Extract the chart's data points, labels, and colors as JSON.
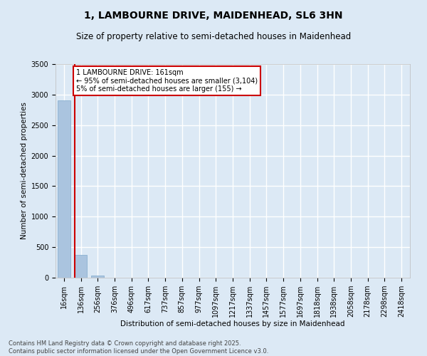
{
  "title": "1, LAMBOURNE DRIVE, MAIDENHEAD, SL6 3HN",
  "subtitle": "Size of property relative to semi-detached houses in Maidenhead",
  "xlabel": "Distribution of semi-detached houses by size in Maidenhead",
  "ylabel": "Number of semi-detached properties",
  "categories": [
    "16sqm",
    "136sqm",
    "256sqm",
    "376sqm",
    "496sqm",
    "617sqm",
    "737sqm",
    "857sqm",
    "977sqm",
    "1097sqm",
    "1217sqm",
    "1337sqm",
    "1457sqm",
    "1577sqm",
    "1697sqm",
    "1818sqm",
    "1938sqm",
    "2058sqm",
    "2178sqm",
    "2298sqm",
    "2418sqm"
  ],
  "values": [
    2900,
    370,
    30,
    0,
    0,
    0,
    0,
    0,
    0,
    0,
    0,
    0,
    0,
    0,
    0,
    0,
    0,
    0,
    0,
    0,
    0
  ],
  "bar_color": "#aac4df",
  "bar_edge_color": "#8ab0d0",
  "vline_color": "#cc0000",
  "annotation_text": "1 LAMBOURNE DRIVE: 161sqm\n← 95% of semi-detached houses are smaller (3,104)\n5% of semi-detached houses are larger (155) →",
  "annotation_box_facecolor": "#ffffff",
  "annotation_box_edgecolor": "#cc0000",
  "ylim": [
    0,
    3500
  ],
  "yticks": [
    0,
    500,
    1000,
    1500,
    2000,
    2500,
    3000,
    3500
  ],
  "background_color": "#dce9f5",
  "grid_color": "#ffffff",
  "title_fontsize": 10,
  "subtitle_fontsize": 8.5,
  "axis_label_fontsize": 7.5,
  "tick_fontsize": 7,
  "annotation_fontsize": 7,
  "footer_text": "Contains HM Land Registry data © Crown copyright and database right 2025.\nContains public sector information licensed under the Open Government Licence v3.0.",
  "footer_fontsize": 6
}
